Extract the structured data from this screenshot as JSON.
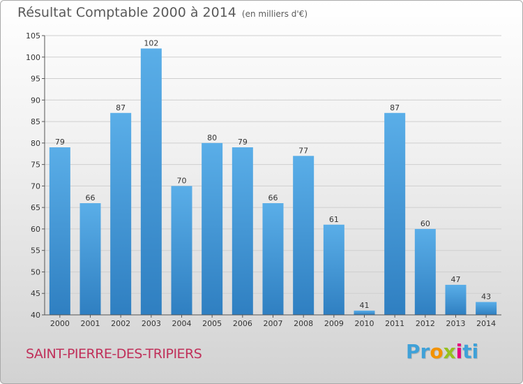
{
  "title": {
    "main": "Résultat Comptable 2000 à 2014",
    "unit": "(en milliers d'€)"
  },
  "commune": "SAINT-PIERRE-DES-TRIPIERS",
  "logo": {
    "text": "Proxiti",
    "parts": [
      "Pr",
      "o",
      "x",
      "i",
      "ti"
    ],
    "colors": [
      "#3fa1d8",
      "#f39200",
      "#95c11f",
      "#e6007e",
      "#3fa1d8"
    ]
  },
  "colors": {
    "bar_light": "#5aaee8",
    "bar_dark": "#2f7fc1",
    "grid": "#cfcfcf",
    "axis": "#555555",
    "place": "#c0305a"
  },
  "chart_data": {
    "type": "bar",
    "categories": [
      "2000",
      "2001",
      "2002",
      "2003",
      "2004",
      "2005",
      "2006",
      "2007",
      "2008",
      "2009",
      "2010",
      "2011",
      "2012",
      "2013",
      "2014"
    ],
    "values": [
      79,
      66,
      87,
      102,
      70,
      80,
      79,
      66,
      77,
      61,
      41,
      87,
      60,
      47,
      43
    ],
    "title": "Résultat Comptable 2000 à 2014",
    "xlabel": "",
    "ylabel": "",
    "ylim": [
      40,
      105
    ],
    "yticks": [
      40,
      45,
      50,
      55,
      60,
      65,
      70,
      75,
      80,
      85,
      90,
      95,
      100,
      105
    ],
    "grid": true,
    "legend": "none"
  }
}
